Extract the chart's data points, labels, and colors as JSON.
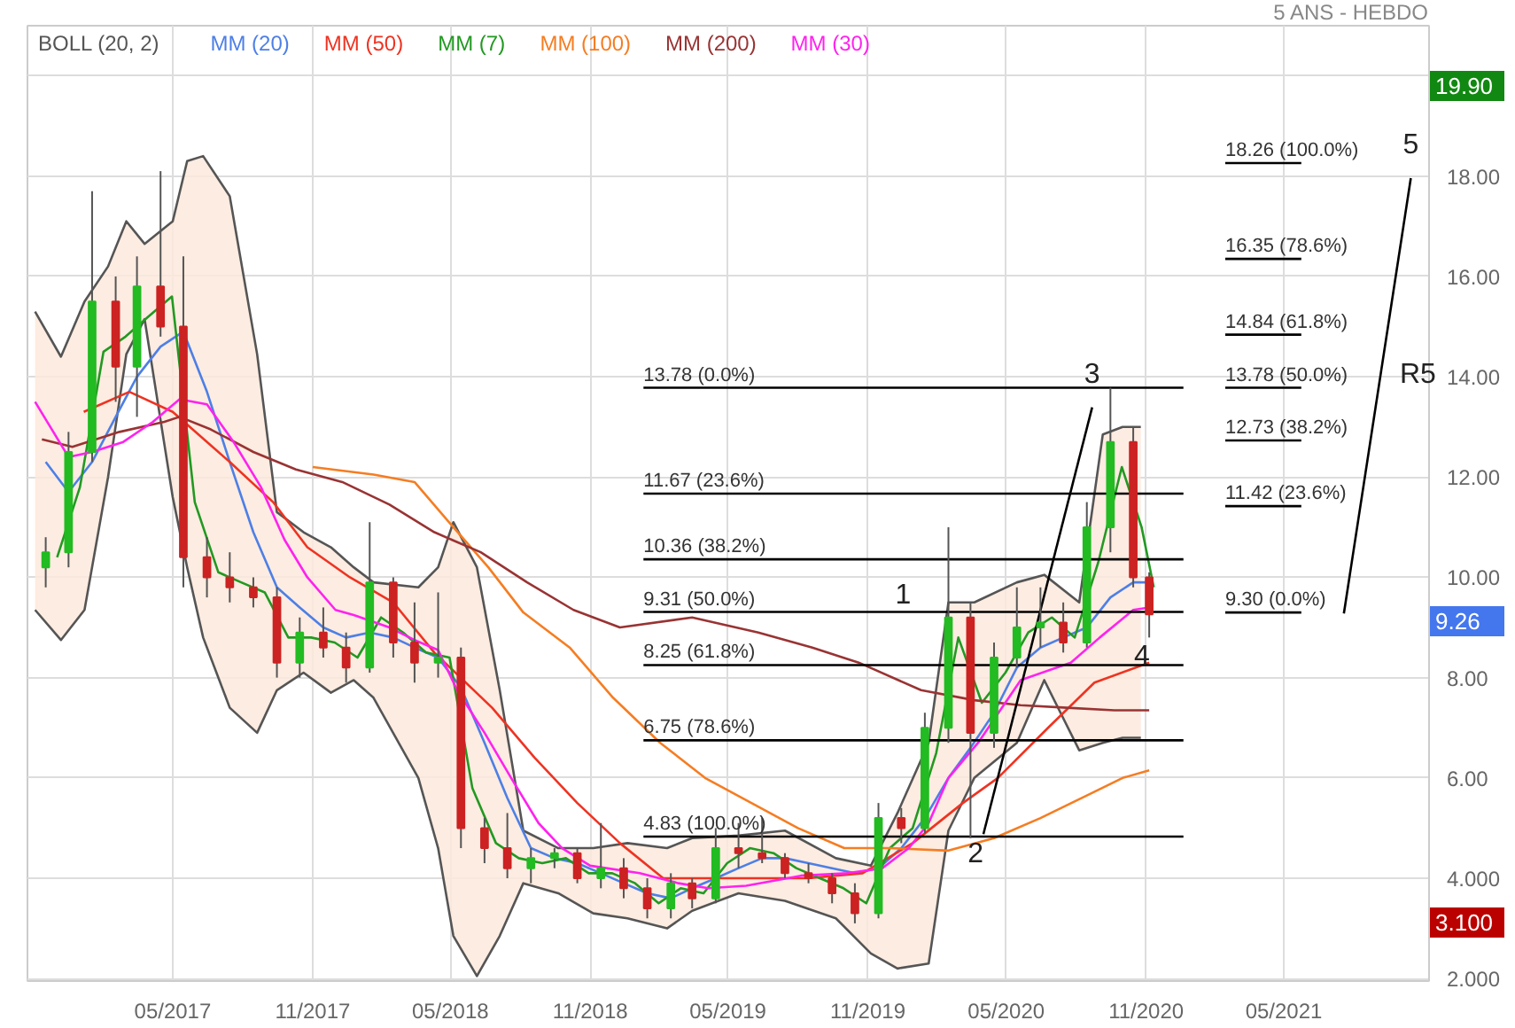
{
  "chart_data": {
    "type": "candlestick",
    "subtitle": "5 ANS - HEBDO",
    "x": [
      "2016-11-15",
      "2016-12-15",
      "2017-01-15",
      "2017-02-15",
      "2017-03-15",
      "2017-04-15",
      "2017-05-15",
      "2017-06-15",
      "2017-07-15",
      "2017-08-15",
      "2017-09-15",
      "2017-10-15",
      "2017-11-15",
      "2017-12-15",
      "2018-01-15",
      "2018-02-15",
      "2018-03-15",
      "2018-04-15",
      "2018-05-15",
      "2018-06-15",
      "2018-07-15",
      "2018-08-15",
      "2018-09-15",
      "2018-10-15",
      "2018-11-15",
      "2018-12-15",
      "2019-01-15",
      "2019-02-15",
      "2019-03-15",
      "2019-04-15",
      "2019-05-15",
      "2019-06-15",
      "2019-07-15",
      "2019-08-15",
      "2019-09-15",
      "2019-10-15",
      "2019-11-15",
      "2019-12-15",
      "2020-01-15",
      "2020-02-15",
      "2020-03-15",
      "2020-04-15",
      "2020-05-15",
      "2020-06-15",
      "2020-07-15",
      "2020-08-15",
      "2020-09-15",
      "2020-10-15",
      "2020-11-05"
    ],
    "ohlc": [
      [
        10.2,
        10.8,
        9.8,
        10.5
      ],
      [
        10.5,
        12.9,
        10.2,
        12.5
      ],
      [
        12.5,
        17.7,
        12.3,
        15.5
      ],
      [
        15.5,
        16.0,
        13.5,
        14.2
      ],
      [
        14.2,
        16.4,
        13.2,
        15.8
      ],
      [
        15.8,
        18.1,
        14.8,
        15.0
      ],
      [
        15.0,
        16.4,
        9.8,
        10.4
      ],
      [
        10.4,
        10.8,
        9.6,
        10.0
      ],
      [
        10.0,
        10.5,
        9.5,
        9.8
      ],
      [
        9.8,
        10.0,
        9.4,
        9.6
      ],
      [
        9.6,
        9.8,
        8.0,
        8.3
      ],
      [
        8.3,
        9.2,
        8.0,
        8.9
      ],
      [
        8.9,
        9.4,
        8.4,
        8.6
      ],
      [
        8.6,
        8.9,
        7.9,
        8.2
      ],
      [
        8.2,
        11.1,
        8.1,
        9.9
      ],
      [
        9.9,
        10.0,
        8.4,
        8.7
      ],
      [
        8.7,
        9.5,
        7.9,
        8.3
      ],
      [
        8.3,
        9.7,
        8.0,
        8.4
      ],
      [
        8.4,
        8.6,
        4.6,
        5.0
      ],
      [
        5.0,
        5.2,
        4.3,
        4.6
      ],
      [
        4.6,
        5.3,
        4.0,
        4.2
      ],
      [
        4.2,
        4.6,
        3.9,
        4.4
      ],
      [
        4.4,
        4.6,
        4.2,
        4.5
      ],
      [
        4.5,
        4.6,
        3.9,
        4.0
      ],
      [
        4.0,
        5.1,
        3.8,
        4.2
      ],
      [
        4.2,
        4.4,
        3.6,
        3.8
      ],
      [
        3.8,
        4.0,
        3.2,
        3.4
      ],
      [
        3.4,
        4.1,
        3.2,
        3.9
      ],
      [
        3.9,
        4.0,
        3.4,
        3.6
      ],
      [
        3.6,
        5.0,
        3.5,
        4.6
      ],
      [
        4.6,
        5.1,
        4.2,
        4.5
      ],
      [
        4.5,
        5.2,
        4.3,
        4.4
      ],
      [
        4.4,
        4.5,
        4.0,
        4.1
      ],
      [
        4.1,
        4.3,
        3.9,
        4.0
      ],
      [
        4.0,
        4.1,
        3.5,
        3.7
      ],
      [
        3.7,
        3.9,
        3.1,
        3.3
      ],
      [
        3.3,
        5.5,
        3.2,
        5.2
      ],
      [
        5.2,
        5.4,
        4.7,
        5.0
      ],
      [
        5.0,
        7.3,
        4.9,
        7.0
      ],
      [
        7.0,
        11.0,
        6.7,
        9.2
      ],
      [
        9.2,
        9.5,
        4.8,
        6.9
      ],
      [
        6.9,
        8.7,
        6.6,
        8.4
      ],
      [
        8.4,
        9.8,
        8.2,
        9.0
      ],
      [
        9.0,
        9.8,
        8.6,
        9.1
      ],
      [
        9.1,
        9.5,
        8.5,
        8.7
      ],
      [
        8.7,
        11.5,
        8.6,
        11.0
      ],
      [
        11.0,
        13.78,
        10.5,
        12.7
      ],
      [
        12.7,
        13.0,
        9.8,
        10.0
      ],
      [
        10.0,
        10.1,
        8.8,
        9.26
      ]
    ],
    "series": [
      {
        "name": "BOLL (20, 2)",
        "type": "line",
        "color": "#555555",
        "x": [
          "2016-11-01",
          "2016-12-05",
          "2017-01-05",
          "2017-02-05",
          "2017-03-01",
          "2017-03-25",
          "2017-05-01",
          "2017-05-20",
          "2017-06-10",
          "2017-07-15",
          "2017-08-20",
          "2017-09-15",
          "2017-10-20",
          "2017-11-25",
          "2017-12-25",
          "2018-01-20",
          "2018-03-20",
          "2018-04-15",
          "2018-05-05",
          "2018-06-05",
          "2018-07-05",
          "2018-08-05",
          "2018-09-20",
          "2018-11-05",
          "2018-12-20",
          "2019-02-10",
          "2019-03-15",
          "2019-05-15",
          "2019-07-15",
          "2019-09-20",
          "2019-11-05",
          "2019-12-10",
          "2020-01-20",
          "2020-02-15",
          "2020-03-20",
          "2020-05-15",
          "2020-06-20",
          "2020-08-05",
          "2020-09-05",
          "2020-10-01",
          "2020-10-25"
        ],
        "values": [
          15.3,
          14.4,
          15.5,
          16.2,
          17.1,
          16.65,
          17.1,
          18.3,
          18.4,
          17.6,
          14.45,
          11.3,
          10.9,
          10.6,
          10.2,
          9.9,
          9.8,
          10.2,
          11.1,
          10.2,
          7.75,
          4.95,
          4.6,
          4.6,
          4.7,
          4.6,
          4.8,
          4.85,
          4.95,
          4.4,
          4.25,
          5.3,
          6.7,
          9.5,
          9.5,
          9.9,
          10.05,
          9.5,
          12.85,
          13.0,
          13.0
        ],
        "lower": [
          9.35,
          8.75,
          9.35,
          12.0,
          14.45,
          15.15,
          11.6,
          10.2,
          8.8,
          7.4,
          6.9,
          7.75,
          8.1,
          7.7,
          7.95,
          7.6,
          6.0,
          4.6,
          2.85,
          2.05,
          2.85,
          3.9,
          3.7,
          3.3,
          3.2,
          3.0,
          3.35,
          3.7,
          3.55,
          3.2,
          2.5,
          2.2,
          2.3,
          4.95,
          6.0,
          6.7,
          7.95,
          6.55,
          6.7,
          6.8,
          6.8
        ],
        "upper": [
          15.3,
          14.4,
          15.5,
          16.2,
          17.1,
          16.65,
          17.1,
          18.3,
          18.4,
          17.6,
          14.45,
          11.3,
          10.9,
          10.6,
          10.2,
          9.9,
          9.8,
          10.2,
          11.1,
          10.2,
          7.75,
          4.95,
          4.6,
          4.6,
          4.7,
          4.6,
          4.8,
          4.85,
          4.95,
          4.4,
          4.25,
          5.3,
          6.7,
          9.5,
          9.5,
          9.9,
          10.05,
          9.5,
          12.85,
          13.0,
          13.0
        ]
      },
      {
        "type": "line",
        "color": "#555555",
        "x": [
          "2016-11-01",
          "2016-12-05",
          "2017-01-05",
          "2017-02-05",
          "2017-03-01",
          "2017-03-25",
          "2017-05-01",
          "2017-05-20",
          "2017-06-10",
          "2017-07-15",
          "2017-08-20",
          "2017-09-15",
          "2017-10-20",
          "2017-11-25",
          "2017-12-25",
          "2018-01-20",
          "2018-03-20",
          "2018-04-15",
          "2018-05-05",
          "2018-06-05",
          "2018-07-05",
          "2018-08-05",
          "2018-09-20",
          "2018-11-05",
          "2018-12-20",
          "2019-02-10",
          "2019-03-15",
          "2019-05-15",
          "2019-07-15",
          "2019-09-20",
          "2019-11-05",
          "2019-12-10",
          "2020-01-20",
          "2020-02-15",
          "2020-03-20",
          "2020-05-15",
          "2020-06-20",
          "2020-08-05",
          "2020-09-05",
          "2020-10-01",
          "2020-10-25"
        ],
        "values": [
          9.35,
          8.75,
          9.35,
          12.0,
          14.45,
          15.15,
          11.6,
          10.2,
          8.8,
          7.4,
          6.9,
          7.75,
          8.1,
          7.7,
          7.95,
          7.6,
          6.0,
          4.6,
          2.85,
          2.05,
          2.85,
          3.9,
          3.7,
          3.3,
          3.2,
          3.0,
          3.35,
          3.7,
          3.55,
          3.2,
          2.5,
          2.2,
          2.3,
          4.95,
          6.0,
          6.7,
          7.95,
          6.55,
          6.7,
          6.8,
          6.8
        ]
      },
      {
        "name": "MM (20)",
        "type": "line",
        "color": "#4d7fe6",
        "x": [
          "2016-11-15",
          "2016-12-15",
          "2017-01-15",
          "2017-02-15",
          "2017-03-15",
          "2017-04-15",
          "2017-05-15",
          "2017-06-15",
          "2017-07-15",
          "2017-08-15",
          "2017-09-15",
          "2017-10-15",
          "2017-11-15",
          "2017-12-15",
          "2018-01-15",
          "2018-02-15",
          "2018-03-15",
          "2018-04-15",
          "2018-05-15",
          "2018-06-15",
          "2018-07-15",
          "2018-08-15",
          "2018-09-15",
          "2018-10-15",
          "2018-11-15",
          "2018-12-15",
          "2019-01-15",
          "2019-02-15",
          "2019-03-15",
          "2019-04-15",
          "2019-05-15",
          "2019-06-15",
          "2019-07-15",
          "2019-08-15",
          "2019-09-15",
          "2019-10-15",
          "2019-11-15",
          "2019-12-15",
          "2020-01-15",
          "2020-02-15",
          "2020-03-15",
          "2020-04-15",
          "2020-05-15",
          "2020-06-15",
          "2020-07-15",
          "2020-08-15",
          "2020-09-15",
          "2020-10-15",
          "2020-11-05"
        ],
        "values": [
          12.3,
          11.7,
          12.3,
          13.2,
          14.0,
          14.6,
          14.9,
          13.7,
          12.3,
          10.9,
          9.8,
          9.4,
          9.0,
          8.8,
          8.9,
          8.8,
          8.6,
          8.4,
          7.8,
          6.7,
          5.6,
          4.6,
          4.4,
          4.3,
          4.1,
          3.9,
          3.7,
          3.6,
          3.8,
          4.0,
          4.2,
          4.4,
          4.4,
          4.3,
          4.2,
          4.1,
          4.2,
          4.6,
          5.2,
          6.0,
          6.6,
          7.3,
          8.2,
          8.6,
          8.8,
          9.0,
          9.6,
          9.9,
          9.9
        ]
      },
      {
        "name": "MM (50)",
        "type": "line",
        "color": "#ee3322",
        "x": [
          "2017-01-04",
          "2017-03-05",
          "2017-05-01",
          "2017-07-15",
          "2017-09-10",
          "2017-10-25",
          "2017-12-20",
          "2018-02-15",
          "2018-04-10",
          "2018-06-25",
          "2018-08-20",
          "2018-10-15",
          "2018-12-10",
          "2019-02-05",
          "2019-04-20",
          "2019-06-25",
          "2019-08-15",
          "2019-10-25",
          "2019-12-30",
          "2020-03-05",
          "2020-04-20",
          "2020-06-25",
          "2020-08-25",
          "2020-11-05"
        ],
        "values": [
          13.3,
          13.7,
          13.3,
          12.3,
          11.5,
          10.6,
          10.0,
          9.5,
          8.5,
          7.4,
          6.4,
          5.5,
          4.7,
          4.0,
          4.0,
          4.0,
          4.0,
          4.1,
          4.7,
          5.5,
          6.0,
          7.0,
          7.9,
          8.3
        ]
      },
      {
        "name": "MM (7)",
        "type": "line",
        "color": "#229922",
        "x": [
          "2016-11-30",
          "2016-12-30",
          "2017-01-30",
          "2017-02-28",
          "2017-03-30",
          "2017-04-30",
          "2017-05-30",
          "2017-06-30",
          "2017-07-30",
          "2017-08-30",
          "2017-09-30",
          "2017-10-30",
          "2017-11-30",
          "2017-12-30",
          "2018-01-30",
          "2018-02-28",
          "2018-03-30",
          "2018-04-30",
          "2018-05-30",
          "2018-06-30",
          "2018-07-30",
          "2018-08-30",
          "2018-09-30",
          "2018-10-30",
          "2018-11-30",
          "2018-12-30",
          "2019-01-30",
          "2019-02-28",
          "2019-03-30",
          "2019-04-30",
          "2019-05-30",
          "2019-06-30",
          "2019-07-30",
          "2019-08-30",
          "2019-09-30",
          "2019-10-30",
          "2019-11-30",
          "2019-12-30",
          "2020-01-30",
          "2020-02-28",
          "2020-03-30",
          "2020-04-30",
          "2020-05-30",
          "2020-06-30",
          "2020-07-30",
          "2020-08-30",
          "2020-09-30",
          "2020-10-26",
          "2020-11-11"
        ],
        "values": [
          10.4,
          11.8,
          14.5,
          14.8,
          15.2,
          15.6,
          11.5,
          10.1,
          9.9,
          9.7,
          8.8,
          8.8,
          8.7,
          8.4,
          9.2,
          8.9,
          8.5,
          8.4,
          5.8,
          4.7,
          4.4,
          4.3,
          4.4,
          4.1,
          4.1,
          3.9,
          3.5,
          3.8,
          3.7,
          4.3,
          4.6,
          4.5,
          4.2,
          4.0,
          3.8,
          3.5,
          4.6,
          5.0,
          6.5,
          8.8,
          7.5,
          8.1,
          8.9,
          9.2,
          8.8,
          10.3,
          12.2,
          11.0,
          9.8
        ]
      },
      {
        "name": "MM (100)",
        "type": "line",
        "color": "#f57d22",
        "x": [
          "2017-11-01",
          "2018-01-20",
          "2018-03-15",
          "2018-05-05",
          "2018-06-20",
          "2018-08-05",
          "2018-10-05",
          "2018-12-01",
          "2019-02-01",
          "2019-04-01",
          "2019-06-01",
          "2019-08-01",
          "2019-10-01",
          "2019-12-01",
          "2020-02-15",
          "2020-04-15",
          "2020-06-15",
          "2020-08-15",
          "2020-10-01",
          "2020-11-05"
        ],
        "values": [
          12.2,
          12.05,
          11.9,
          11.0,
          10.2,
          9.3,
          8.6,
          7.6,
          6.7,
          6.0,
          5.5,
          5.0,
          4.6,
          4.6,
          4.55,
          4.8,
          5.2,
          5.65,
          6.0,
          6.15
        ]
      },
      {
        "name": "MM (200)",
        "type": "line",
        "color": "#993333",
        "x": [
          "2016-11-10",
          "2016-12-20",
          "2017-02-20",
          "2017-04-20",
          "2017-05-10",
          "2017-06-20",
          "2017-08-15",
          "2017-10-10",
          "2017-12-10",
          "2018-02-10",
          "2018-04-10",
          "2018-06-10",
          "2018-08-10",
          "2018-10-10",
          "2018-12-10",
          "2019-03-15",
          "2019-06-10",
          "2019-08-20",
          "2019-10-20",
          "2020-01-10",
          "2020-03-20",
          "2020-05-20",
          "2020-07-20",
          "2020-09-20",
          "2020-11-05"
        ],
        "values": [
          12.75,
          12.6,
          12.9,
          13.1,
          13.2,
          12.95,
          12.5,
          12.15,
          11.9,
          11.45,
          10.9,
          10.5,
          9.9,
          9.35,
          9.0,
          9.2,
          8.9,
          8.6,
          8.3,
          7.75,
          7.55,
          7.45,
          7.4,
          7.35,
          7.35
        ]
      },
      {
        "name": "MM (30)",
        "type": "line",
        "color": "#ff22ee",
        "x": [
          "2016-11-01",
          "2016-12-15",
          "2017-01-15",
          "2017-02-25",
          "2017-04-05",
          "2017-05-10",
          "2017-06-15",
          "2017-07-20",
          "2017-08-25",
          "2017-09-25",
          "2017-10-25",
          "2017-12-01",
          "2017-12-25",
          "2018-02-10",
          "2018-03-15",
          "2018-04-15",
          "2018-05-10",
          "2018-06-15",
          "2018-07-20",
          "2018-08-25",
          "2018-09-25",
          "2018-11-01",
          "2019-01-05",
          "2019-02-25",
          "2019-04-05",
          "2019-05-25",
          "2019-08-05",
          "2019-10-05",
          "2019-11-20",
          "2019-12-25",
          "2020-01-20",
          "2020-02-15",
          "2020-03-25",
          "2020-05-20",
          "2020-07-25",
          "2020-09-01",
          "2020-10-15",
          "2020-11-05"
        ],
        "values": [
          13.5,
          12.4,
          12.5,
          12.7,
          13.1,
          13.55,
          13.45,
          12.7,
          11.8,
          10.75,
          10.0,
          9.35,
          9.25,
          9.0,
          8.75,
          8.55,
          7.75,
          6.9,
          6.0,
          5.1,
          4.6,
          4.25,
          4.1,
          3.9,
          3.8,
          3.85,
          4.05,
          4.1,
          4.2,
          4.6,
          5.1,
          6.0,
          6.7,
          7.95,
          8.3,
          8.8,
          9.35,
          9.4
        ]
      },
      {
        "type": "line",
        "color": "#000000",
        "x": [
          "2019-01-10",
          "2020-12-20"
        ],
        "values": [
          13.78,
          13.78
        ]
      },
      {
        "type": "line",
        "color": "#000000",
        "x": [
          "2019-01-10",
          "2020-12-20"
        ],
        "values": [
          11.67,
          11.67
        ]
      },
      {
        "type": "line",
        "color": "#000000",
        "x": [
          "2019-01-10",
          "2020-12-20"
        ],
        "values": [
          10.36,
          10.36
        ]
      },
      {
        "type": "line",
        "color": "#000000",
        "x": [
          "2019-01-10",
          "2020-12-20"
        ],
        "values": [
          9.31,
          9.31
        ]
      },
      {
        "type": "line",
        "color": "#000000",
        "x": [
          "2019-01-10",
          "2020-12-20"
        ],
        "values": [
          8.25,
          8.25
        ]
      },
      {
        "type": "line",
        "color": "#000000",
        "x": [
          "2019-01-10",
          "2020-12-20"
        ],
        "values": [
          6.75,
          6.75
        ]
      },
      {
        "type": "line",
        "color": "#000000",
        "x": [
          "2019-01-10",
          "2020-12-20"
        ],
        "values": [
          4.83,
          4.83
        ]
      },
      {
        "type": "line",
        "color": "#000000",
        "x": [
          "2020-04-01",
          "2020-08-22"
        ],
        "values": [
          4.88,
          13.39
        ]
      },
      {
        "type": "line",
        "color": "#000000",
        "x": [
          "2021-02-13",
          "2021-05-24"
        ],
        "values": [
          18.26,
          18.26
        ]
      },
      {
        "type": "line",
        "color": "#000000",
        "x": [
          "2021-02-13",
          "2021-05-24"
        ],
        "values": [
          16.35,
          16.35
        ]
      },
      {
        "type": "line",
        "color": "#000000",
        "x": [
          "2021-02-13",
          "2021-05-24"
        ],
        "values": [
          14.84,
          14.84
        ]
      },
      {
        "type": "line",
        "color": "#000000",
        "x": [
          "2021-02-13",
          "2021-05-24"
        ],
        "values": [
          13.78,
          13.78
        ]
      },
      {
        "type": "line",
        "color": "#000000",
        "x": [
          "2021-02-13",
          "2021-05-24"
        ],
        "values": [
          12.73,
          12.73
        ]
      },
      {
        "type": "line",
        "color": "#000000",
        "x": [
          "2021-02-13",
          "2021-05-24"
        ],
        "values": [
          11.42,
          11.42
        ]
      },
      {
        "type": "line",
        "color": "#000000",
        "x": [
          "2021-02-13",
          "2021-05-24"
        ],
        "values": [
          9.3,
          9.3
        ]
      },
      {
        "type": "line",
        "color": "#000000",
        "x": [
          "2021-07-19",
          "2021-10-15"
        ],
        "values": [
          9.28,
          17.96
        ]
      }
    ],
    "annotations": [
      {
        "text": "13.78  (0.0%)",
        "x": "2019-01-10",
        "y": 13.78
      },
      {
        "text": "11.67  (23.6%)",
        "x": "2019-01-10",
        "y": 11.67
      },
      {
        "text": "10.36  (38.2%)",
        "x": "2019-01-10",
        "y": 10.36
      },
      {
        "text": "9.31  (50.0%)",
        "x": "2019-01-10",
        "y": 9.31
      },
      {
        "text": "8.25  (61.8%)",
        "x": "2019-01-10",
        "y": 8.25
      },
      {
        "text": "6.75  (78.6%)",
        "x": "2019-01-10",
        "y": 6.75
      },
      {
        "text": "4.83  (100.0%)",
        "x": "2019-01-10",
        "y": 4.83
      },
      {
        "text": "18.26  (100.0%)",
        "x": "2021-02-13",
        "y": 18.26
      },
      {
        "text": "16.35  (78.6%)",
        "x": "2021-02-13",
        "y": 16.35
      },
      {
        "text": "14.84  (61.8%)",
        "x": "2021-02-13",
        "y": 14.84
      },
      {
        "text": "13.78  (50.0%)",
        "x": "2021-02-13",
        "y": 13.78
      },
      {
        "text": "12.73  (38.2%)",
        "x": "2021-02-13",
        "y": 12.73
      },
      {
        "text": "11.42  (23.6%)",
        "x": "2021-02-13",
        "y": 11.42
      },
      {
        "text": "9.30  (0.0%)",
        "x": "2021-02-13",
        "y": 9.3
      },
      {
        "text": "1",
        "x": "2019-12-07",
        "y": 9.45
      },
      {
        "text": "2",
        "x": "2020-04-01",
        "y": 4.88
      },
      {
        "text": "3",
        "x": "2020-08-22",
        "y": 13.39
      },
      {
        "text": "4",
        "x": "2020-10-16",
        "y": 8.22
      },
      {
        "text": "5",
        "x": "2021-10-15",
        "y": 17.96
      },
      "R5",
      "19.90",
      "9.26",
      "3.100"
    ],
    "xlim": [
      "2016-10-22",
      "2021-11-08"
    ],
    "xticks": [
      {
        "value": "2017-05-01",
        "label": "05/2017"
      },
      {
        "value": "2017-11-01",
        "label": "11/2017"
      },
      {
        "value": "2018-05-01",
        "label": "05/2018"
      },
      {
        "value": "2018-11-01",
        "label": "11/2018"
      },
      {
        "value": "2019-05-01",
        "label": "05/2019"
      },
      {
        "value": "2019-11-01",
        "label": "11/2019"
      },
      {
        "value": "2020-05-01",
        "label": "05/2020"
      },
      {
        "value": "2020-11-01",
        "label": "11/2020"
      },
      {
        "value": "2021-05-01",
        "label": "05/2021"
      }
    ],
    "ylim": [
      1.95,
      21.0
    ],
    "yticks": [
      {
        "value": 2,
        "label": "2.000"
      },
      {
        "value": 4,
        "label": "4.000"
      },
      {
        "value": 6,
        "label": "6.00"
      },
      {
        "value": 8,
        "label": "8.00"
      },
      {
        "value": 10,
        "label": "10.00"
      },
      {
        "value": 12,
        "label": "12.00"
      },
      {
        "value": 14,
        "label": "14.00"
      },
      {
        "value": 16,
        "label": "16.00"
      },
      {
        "value": 18,
        "label": "18.00"
      },
      {
        "value": 20,
        "label": null
      }
    ],
    "grid": true,
    "legend": "top left"
  }
}
